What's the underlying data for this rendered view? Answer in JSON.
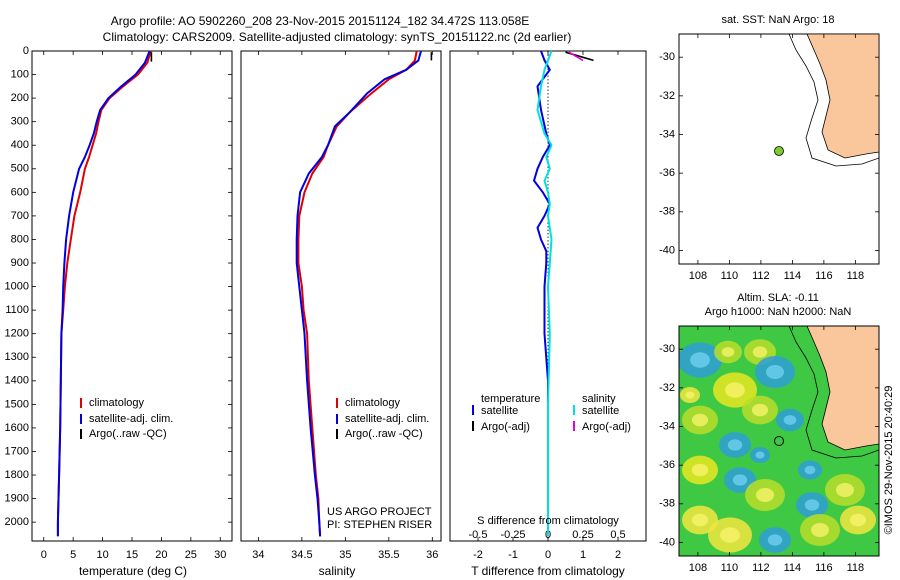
{
  "header": {
    "line1": "Argo profile: AO 5902260_208 23-Nov-2015 20151124_182 34.472S 113.058E",
    "line2": "Climatology: CARS2009. Satellite-adjusted climatology: synTS_20151122.nc (2d earlier)"
  },
  "colors": {
    "clim": "#e00000",
    "sat": "#0000e0",
    "argo": "#000000",
    "sal_sat": "#00e0e0",
    "sal_argo": "#e000e0",
    "land": "#f9c79b"
  },
  "chart_data": [
    {
      "id": "temperature",
      "type": "line",
      "xlabel": "temperature (deg C)",
      "ylabel": "",
      "xlim": [
        -2,
        32
      ],
      "ylim": [
        2080,
        0
      ],
      "xticks": [
        0,
        5,
        10,
        15,
        20,
        25,
        30
      ],
      "yticks": [
        0,
        100,
        200,
        300,
        400,
        500,
        600,
        700,
        800,
        900,
        1000,
        1100,
        1200,
        1300,
        1400,
        1500,
        1600,
        1700,
        1800,
        1900,
        2000
      ],
      "legend": [
        "climatology",
        "satellite-adj. clim.",
        "Argo(..raw -QC)"
      ],
      "series": [
        {
          "name": "climatology",
          "color": "#e00000",
          "x": [
            18.2,
            17.6,
            16.0,
            13.5,
            11.2,
            9.8,
            9.3,
            8.9,
            8.3,
            7.7,
            7.0,
            6.2,
            5.2,
            4.6,
            4.0,
            3.6,
            3.3,
            3.0,
            2.9,
            2.8,
            2.6,
            2.5,
            2.4,
            2.4
          ],
          "y": [
            0,
            50,
            100,
            150,
            200,
            250,
            300,
            350,
            400,
            450,
            500,
            600,
            700,
            800,
            900,
            1000,
            1100,
            1200,
            1400,
            1600,
            1800,
            1900,
            2000,
            2060
          ]
        },
        {
          "name": "satellite-adj. clim.",
          "color": "#0000e0",
          "x": [
            18.0,
            17.2,
            15.6,
            13.2,
            11.0,
            9.6,
            9.0,
            8.5,
            7.8,
            7.0,
            6.0,
            5.0,
            4.3,
            3.8,
            3.5,
            3.3,
            3.2,
            3.0,
            2.9,
            2.8,
            2.6,
            2.5,
            2.4,
            2.4
          ],
          "y": [
            0,
            50,
            100,
            150,
            200,
            250,
            300,
            350,
            400,
            450,
            500,
            600,
            700,
            800,
            900,
            1000,
            1100,
            1200,
            1400,
            1600,
            1800,
            1900,
            2000,
            2060
          ]
        },
        {
          "name": "Argo(..raw -QC)",
          "color": "#000000",
          "x": [
            18.3,
            18.3
          ],
          "y": [
            5,
            45
          ]
        }
      ]
    },
    {
      "id": "salinity",
      "type": "line",
      "xlabel": "salinity",
      "ylabel": "",
      "xlim": [
        33.8,
        36.1
      ],
      "ylim": [
        2080,
        0
      ],
      "xticks": [
        34,
        34.5,
        35,
        35.5,
        36
      ],
      "legend": [
        "climatology",
        "satellite-adj. clim.",
        "Argo(..raw -QC)"
      ],
      "annotations": [
        "US ARGO PROJECT",
        "PI: STEPHEN RISER"
      ],
      "series": [
        {
          "name": "climatology",
          "color": "#e00000",
          "x": [
            35.82,
            35.8,
            35.7,
            35.5,
            35.3,
            35.05,
            34.9,
            34.8,
            34.75,
            34.62,
            34.53,
            34.47,
            34.46,
            34.46,
            34.5,
            34.52,
            34.56,
            34.58,
            34.62,
            34.66,
            34.69,
            34.7,
            34.71
          ],
          "y": [
            0,
            40,
            80,
            120,
            180,
            260,
            320,
            400,
            450,
            520,
            600,
            700,
            800,
            900,
            1000,
            1100,
            1200,
            1400,
            1600,
            1800,
            1900,
            2000,
            2060
          ]
        },
        {
          "name": "satellite-adj. clim.",
          "color": "#0000e0",
          "x": [
            35.87,
            35.84,
            35.7,
            35.45,
            35.25,
            35.05,
            34.88,
            34.8,
            34.73,
            34.58,
            34.48,
            34.45,
            34.44,
            34.44,
            34.47,
            34.5,
            34.53,
            34.56,
            34.6,
            34.65,
            34.68,
            34.7,
            34.71
          ],
          "y": [
            0,
            40,
            80,
            120,
            180,
            260,
            320,
            400,
            450,
            520,
            600,
            700,
            800,
            900,
            1000,
            1100,
            1200,
            1400,
            1600,
            1800,
            1900,
            2000,
            2060
          ]
        },
        {
          "name": "Argo(..raw -QC)",
          "color": "#000000",
          "x": [
            35.99,
            35.99
          ],
          "y": [
            5,
            40
          ]
        }
      ]
    },
    {
      "id": "difference",
      "type": "line",
      "xlabel": "T difference from climatology",
      "xlabel_top": "S difference from climatology",
      "xlim": [
        -2.8,
        2.8
      ],
      "ylim": [
        2080,
        0
      ],
      "xticks_T": [
        -2,
        -1,
        0,
        1,
        2
      ],
      "xticks_S": [
        -0.5,
        -0.25,
        0,
        0.25,
        0.5
      ],
      "legend_T": [
        "temperature",
        "satellite",
        "Argo(-adj)"
      ],
      "legend_S": [
        "salinity",
        "satellite",
        "Argo(-adj)"
      ],
      "series": [
        {
          "name": "T satellite",
          "color": "#0000e0",
          "x": [
            -0.2,
            -0.1,
            0.05,
            -0.3,
            -0.2,
            -0.05,
            0.05,
            -0.15,
            -0.3,
            -0.4,
            -0.15,
            0.05,
            -0.1,
            -0.3,
            -0.2,
            -0.05,
            -0.05,
            -0.1,
            -0.1,
            0.0,
            0.0,
            0.0,
            0.0,
            0.0
          ],
          "y": [
            0,
            40,
            80,
            150,
            250,
            350,
            400,
            450,
            500,
            550,
            600,
            650,
            700,
            750,
            800,
            850,
            900,
            1000,
            1200,
            1400,
            1600,
            1800,
            2000,
            2060
          ]
        },
        {
          "name": "S satellite",
          "color": "#00e0e0",
          "x": [
            0.1,
            0.0,
            -0.1,
            -0.2,
            -0.3,
            -0.1,
            0.1,
            -0.05,
            0.05,
            -0.1,
            0.0,
            0.05,
            0.0,
            0.1,
            0.05,
            0.0,
            0.05,
            0.0,
            0.0,
            0.0
          ],
          "y": [
            0,
            40,
            80,
            150,
            250,
            350,
            400,
            450,
            500,
            550,
            600,
            650,
            700,
            800,
            900,
            1000,
            1200,
            1500,
            1800,
            2060
          ]
        },
        {
          "name": "T Argo(-adj)",
          "color": "#000000",
          "x": [
            0.5,
            1.3
          ],
          "y": [
            5,
            40
          ]
        },
        {
          "name": "S Argo(-adj)",
          "color": "#e000e0",
          "x": [
            0.6,
            1.0
          ],
          "y": [
            5,
            40
          ]
        }
      ]
    }
  ],
  "map_top": {
    "title": "sat. SST: NaN Argo: 18",
    "xticks": [
      108,
      110,
      112,
      114,
      116,
      118
    ],
    "yticks": [
      -30,
      -32,
      -34,
      -36,
      -38,
      -40
    ],
    "xlim": [
      106.8,
      119.5
    ],
    "ylim": [
      -40.7,
      -28.8
    ],
    "float_lon": 113.058,
    "float_lat": -34.472
  },
  "map_bottom": {
    "title1": "Altim. SLA: -0.11",
    "title2": "Argo h1000: NaN h2000: NaN",
    "xticks": [
      108,
      110,
      112,
      114,
      116,
      118
    ],
    "yticks": [
      -30,
      -32,
      -34,
      -36,
      -38,
      -40
    ],
    "xlim": [
      106.8,
      119.5
    ],
    "ylim": [
      -40.7,
      -28.8
    ],
    "float_lon": 113.058,
    "float_lat": -34.472
  },
  "credit": "©IMOS 29-Nov-2015 20:40:29"
}
